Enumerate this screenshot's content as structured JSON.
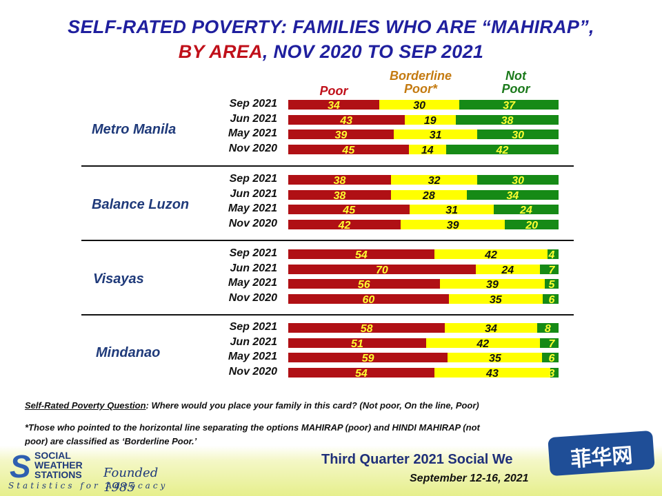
{
  "title_line1": "SELF-RATED POVERTY: FAMILIES WHO ARE “MAHIRAP”,",
  "title_line2_red": "BY AREA",
  "title_line2_rest": ", NOV 2020 TO SEP 2021",
  "legend": {
    "poor": "Poor",
    "borderline_line1": "Borderline",
    "borderline_line2": "Poor*",
    "notpoor_line1": "Not",
    "notpoor_line2": "Poor"
  },
  "colors": {
    "poor": "#b01015",
    "borderline": "#ffff00",
    "notpoor": "#168a16",
    "borderline_text": "#c47a10",
    "notpoor_text": "#1c7a1c"
  },
  "chart_data": {
    "type": "bar",
    "stacked": true,
    "orientation": "horizontal",
    "series_names": [
      "Poor",
      "Borderline Poor*",
      "Not Poor"
    ],
    "groups": [
      {
        "name": "Metro Manila",
        "rows": [
          {
            "label": "Sep 2021",
            "values": [
              34,
              30,
              37
            ]
          },
          {
            "label": "Jun 2021",
            "values": [
              43,
              19,
              38
            ]
          },
          {
            "label": "May 2021",
            "values": [
              39,
              31,
              30
            ]
          },
          {
            "label": "Nov 2020",
            "values": [
              45,
              14,
              42
            ]
          }
        ]
      },
      {
        "name": "Balance Luzon",
        "rows": [
          {
            "label": "Sep 2021",
            "values": [
              38,
              32,
              30
            ]
          },
          {
            "label": "Jun 2021",
            "values": [
              38,
              28,
              34
            ]
          },
          {
            "label": "May 2021",
            "values": [
              45,
              31,
              24
            ]
          },
          {
            "label": "Nov 2020",
            "values": [
              42,
              39,
              20
            ]
          }
        ]
      },
      {
        "name": "Visayas",
        "rows": [
          {
            "label": "Sep 2021",
            "values": [
              54,
              42,
              4
            ]
          },
          {
            "label": "Jun 2021",
            "values": [
              70,
              24,
              7
            ]
          },
          {
            "label": "May 2021",
            "values": [
              56,
              39,
              5
            ]
          },
          {
            "label": "Nov 2020",
            "values": [
              60,
              35,
              6
            ]
          }
        ]
      },
      {
        "name": "Mindanao",
        "rows": [
          {
            "label": "Sep 2021",
            "values": [
              58,
              34,
              8
            ]
          },
          {
            "label": "Jun 2021",
            "values": [
              51,
              42,
              7
            ]
          },
          {
            "label": "May 2021",
            "values": [
              59,
              35,
              6
            ]
          },
          {
            "label": "Nov 2020",
            "values": [
              54,
              43,
              3
            ]
          }
        ]
      }
    ]
  },
  "footnote": {
    "question_label": "Self-Rated Poverty Question",
    "question_text": ":  Where would you place your family in this card?  (Not poor, On the line, Poor)",
    "borderline_line1": "*Those who pointed to the horizontal line separating the options MAHIRAP (poor) and HINDI MAHIRAP (not",
    "borderline_line2": "poor) are classified as ‘Borderline Poor.’"
  },
  "footer": {
    "logo_line1": "SOCIAL",
    "logo_line2": "WEATHER",
    "logo_line3": "STATIONS",
    "logo_founded": "Founded 1985",
    "logo_motto": "Statistics for Advocacy",
    "survey_title": "Third Quarter 2021 Social We",
    "survey_dates": "September 12-16, 2021",
    "watermark": "菲华网"
  }
}
